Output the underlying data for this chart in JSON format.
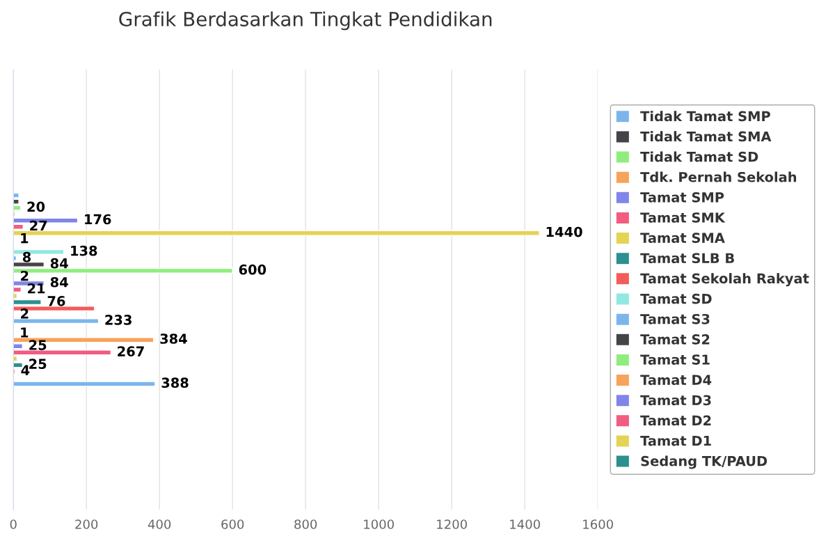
{
  "chart_data": {
    "type": "bar",
    "orientation": "horizontal",
    "title": "Grafik Berdasarkan Tingkat Pendidikan",
    "categories": [
      null
    ],
    "series": [
      {
        "name": "Tidak Tamat SMP",
        "color": "#7cb5ec",
        "values": [
          15
        ],
        "value_labels": [
          null
        ]
      },
      {
        "name": "Tidak Tamat SMA",
        "color": "#434348",
        "values": [
          15
        ],
        "value_labels": [
          null
        ]
      },
      {
        "name": "Tidak Tamat SD",
        "color": "#90ed7d",
        "values": [
          20
        ],
        "value_labels": [
          "20"
        ]
      },
      {
        "name": "Tdk. Pernah Sekolah",
        "color": "#f7a35c",
        "values": [
          4
        ],
        "value_labels": [
          null
        ]
      },
      {
        "name": "Tamat SMP",
        "color": "#8085e9",
        "values": [
          176
        ],
        "value_labels": [
          "176"
        ]
      },
      {
        "name": "Tamat SMK",
        "color": "#f15c80",
        "values": [
          27
        ],
        "value_labels": [
          "27"
        ]
      },
      {
        "name": "Tamat SMA",
        "color": "#e4d354",
        "values": [
          1440
        ],
        "value_labels": [
          "1440"
        ]
      },
      {
        "name": "Tamat SLB B",
        "color": "#2b908f",
        "values": [
          1
        ],
        "value_labels": [
          "1"
        ]
      },
      {
        "name": "Tamat Sekolah Rakyat",
        "color": "#f45b5b",
        "values": [
          null
        ],
        "value_labels": [
          null
        ]
      },
      {
        "name": "Tamat SD",
        "color": "#91e8e1",
        "values": [
          138
        ],
        "value_labels": [
          "138"
        ]
      },
      {
        "name": "Tamat S3",
        "color": "#7cb5ec",
        "values": [
          8
        ],
        "value_labels": [
          "8"
        ]
      },
      {
        "name": "Tamat S2",
        "color": "#434348",
        "values": [
          84
        ],
        "value_labels": [
          "84"
        ]
      },
      {
        "name": "Tamat S1",
        "color": "#90ed7d",
        "values": [
          600
        ],
        "value_labels": [
          "600"
        ]
      },
      {
        "name": "Tamat D4",
        "color": "#f7a35c",
        "values": [
          2
        ],
        "value_labels": [
          "2"
        ]
      },
      {
        "name": "Tamat D3",
        "color": "#8085e9",
        "values": [
          84
        ],
        "value_labels": [
          "84"
        ]
      },
      {
        "name": "Tamat D2",
        "color": "#f15c80",
        "values": [
          21
        ],
        "value_labels": [
          "21"
        ]
      },
      {
        "name": "Tamat D1",
        "color": "#e4d354",
        "values": [
          10
        ],
        "value_labels": [
          null
        ]
      },
      {
        "name": "Sedang TK/PAUD",
        "color": "#2b908f",
        "values": [
          76
        ],
        "value_labels": [
          "76"
        ]
      },
      {
        "color": "#f45b5b",
        "values": [
          222
        ],
        "value_labels": [
          null
        ]
      },
      {
        "color": "#91e8e1",
        "values": [
          2
        ],
        "value_labels": [
          "2"
        ]
      },
      {
        "color": "#7cb5ec",
        "values": [
          233
        ],
        "value_labels": [
          "233"
        ]
      },
      {
        "values": [
          null
        ],
        "value_labels": [
          null
        ]
      },
      {
        "color": "#90ed7d",
        "values": [
          1
        ],
        "value_labels": [
          "1"
        ]
      },
      {
        "color": "#f7a35c",
        "values": [
          384
        ],
        "value_labels": [
          "384"
        ]
      },
      {
        "color": "#8085e9",
        "values": [
          25
        ],
        "value_labels": [
          "25"
        ]
      },
      {
        "color": "#f15c80",
        "values": [
          267
        ],
        "value_labels": [
          "267"
        ]
      },
      {
        "color": "#e4d354",
        "values": [
          10
        ],
        "value_labels": [
          null
        ]
      },
      {
        "color": "#2b908f",
        "values": [
          25
        ],
        "value_labels": [
          "25"
        ]
      },
      {
        "color": "#f45b5b",
        "values": [
          4
        ],
        "value_labels": [
          "4"
        ]
      },
      {
        "values": [
          null
        ],
        "value_labels": [
          null
        ]
      },
      {
        "color": "#7cb5ec",
        "values": [
          388
        ],
        "value_labels": [
          "388"
        ]
      }
    ],
    "xlim": [
      0,
      1600
    ],
    "xticks": [
      0,
      200,
      400,
      600,
      800,
      1000,
      1200,
      1400,
      1600
    ],
    "grid": "x",
    "legend": "right",
    "tick_labels": "x"
  }
}
